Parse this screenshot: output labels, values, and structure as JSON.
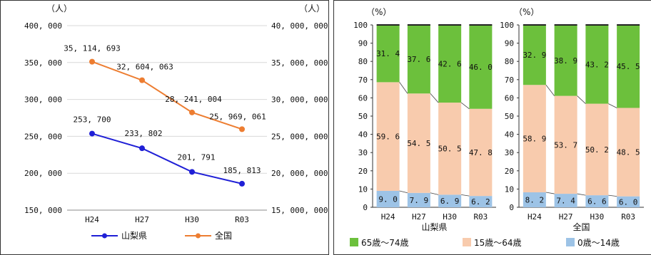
{
  "chart_data": [
    {
      "type": "line",
      "x": [
        "H24",
        "H27",
        "H30",
        "R03"
      ],
      "left_unit": "（人）",
      "right_unit": "（人）",
      "left_ticks": [
        "400, 000",
        "350, 000",
        "300, 000",
        "250, 000",
        "200, 000",
        "150, 000"
      ],
      "right_ticks": [
        "40, 000, 000",
        "35, 000, 000",
        "30, 000, 000",
        "25, 000, 000",
        "20, 000, 000",
        "15, 000, 000"
      ],
      "ylim_left": [
        150000,
        400000
      ],
      "ylim_right": [
        15000000,
        40000000
      ],
      "series": [
        {
          "name": "山梨県",
          "axis": "left",
          "color": "#1f1fd6",
          "values": [
            253700,
            233802,
            201791,
            185813
          ],
          "labels": [
            "253, 700",
            "233, 802",
            "201, 791",
            "185, 813"
          ]
        },
        {
          "name": "全国",
          "axis": "right",
          "color": "#ed7d31",
          "values": [
            35114693,
            32604063,
            28241004,
            25969061
          ],
          "labels": [
            "35, 114, 693",
            "32, 604, 063",
            "28, 241, 004",
            "25, 969, 061"
          ]
        }
      ]
    },
    {
      "type": "bar",
      "stacked": true,
      "unit": "（%）",
      "y_ticks": [
        "100",
        "90",
        "80",
        "70",
        "60",
        "50",
        "40",
        "30",
        "20",
        "10",
        "0"
      ],
      "ylim": [
        0,
        100
      ],
      "groups": [
        {
          "name": "山梨県",
          "categories": [
            "H24",
            "H27",
            "H30",
            "R03"
          ],
          "series": [
            {
              "name": "0歳～14歳",
              "values": [
                9.0,
                7.9,
                6.9,
                6.2
              ],
              "labels": [
                "9. 0",
                "7. 9",
                "6. 9",
                "6. 2"
              ]
            },
            {
              "name": "15歳～64歳",
              "values": [
                59.6,
                54.5,
                50.5,
                47.8
              ],
              "labels": [
                "59. 6",
                "54. 5",
                "50. 5",
                "47. 8"
              ]
            },
            {
              "name": "65歳～74歳",
              "values": [
                31.4,
                37.6,
                42.6,
                46.0
              ],
              "labels": [
                "31. 4",
                "37. 6",
                "42. 6",
                "46. 0"
              ]
            }
          ]
        },
        {
          "name": "全国",
          "categories": [
            "H24",
            "H27",
            "H30",
            "R03"
          ],
          "series": [
            {
              "name": "0歳～14歳",
              "values": [
                8.2,
                7.4,
                6.6,
                6.0
              ],
              "labels": [
                "8. 2",
                "7. 4",
                "6. 6",
                "6. 0"
              ]
            },
            {
              "name": "15歳～64歳",
              "values": [
                58.9,
                53.7,
                50.2,
                48.5
              ],
              "labels": [
                "58. 9",
                "53. 7",
                "50. 2",
                "48. 5"
              ]
            },
            {
              "name": "65歳～74歳",
              "values": [
                32.9,
                38.9,
                43.2,
                45.5
              ],
              "labels": [
                "32. 9",
                "38. 9",
                "43. 2",
                "45. 5"
              ]
            }
          ]
        }
      ],
      "legend": [
        {
          "name": "65歳～74歳",
          "color": "#6cc03c"
        },
        {
          "name": "15歳～64歳",
          "color": "#f8cbad"
        },
        {
          "name": "0歳～14歳",
          "color": "#9dc3e6"
        }
      ],
      "colors": {
        "0歳～14歳": "#9dc3e6",
        "15歳～64歳": "#f8cbad",
        "65歳～74歳": "#6cc03c"
      }
    }
  ]
}
